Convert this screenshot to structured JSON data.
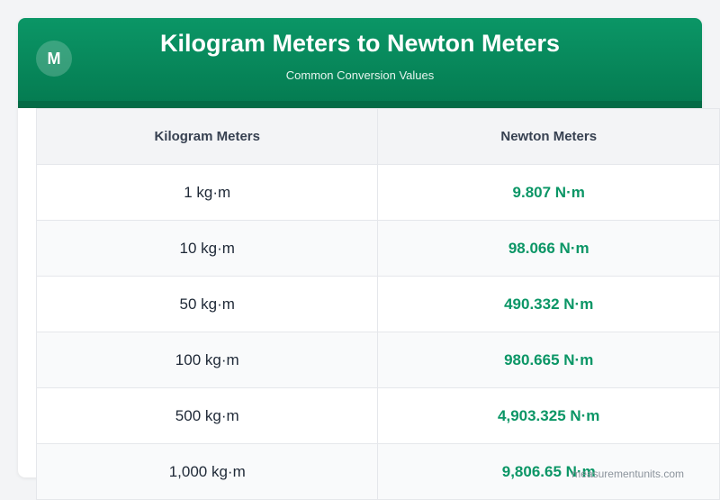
{
  "header": {
    "logo_letter": "M",
    "title": "Kilogram Meters to Newton Meters",
    "subtitle": "Common Conversion Values"
  },
  "table": {
    "columns": [
      "Kilogram Meters",
      "Newton Meters"
    ],
    "rows": [
      {
        "kg": "1 kg·m",
        "nm": "9.807 N·m"
      },
      {
        "kg": "10 kg·m",
        "nm": "98.066 N·m"
      },
      {
        "kg": "50 kg·m",
        "nm": "490.332 N·m"
      },
      {
        "kg": "100 kg·m",
        "nm": "980.665 N·m"
      },
      {
        "kg": "500 kg·m",
        "nm": "4,903.325 N·m"
      },
      {
        "kg": "1,000 kg·m",
        "nm": "9,806.65 N·m"
      }
    ]
  },
  "footer": {
    "watermark": "measurementunits.com"
  },
  "colors": {
    "accent_green": "#0b9666",
    "header_dark_green": "#047a50"
  }
}
